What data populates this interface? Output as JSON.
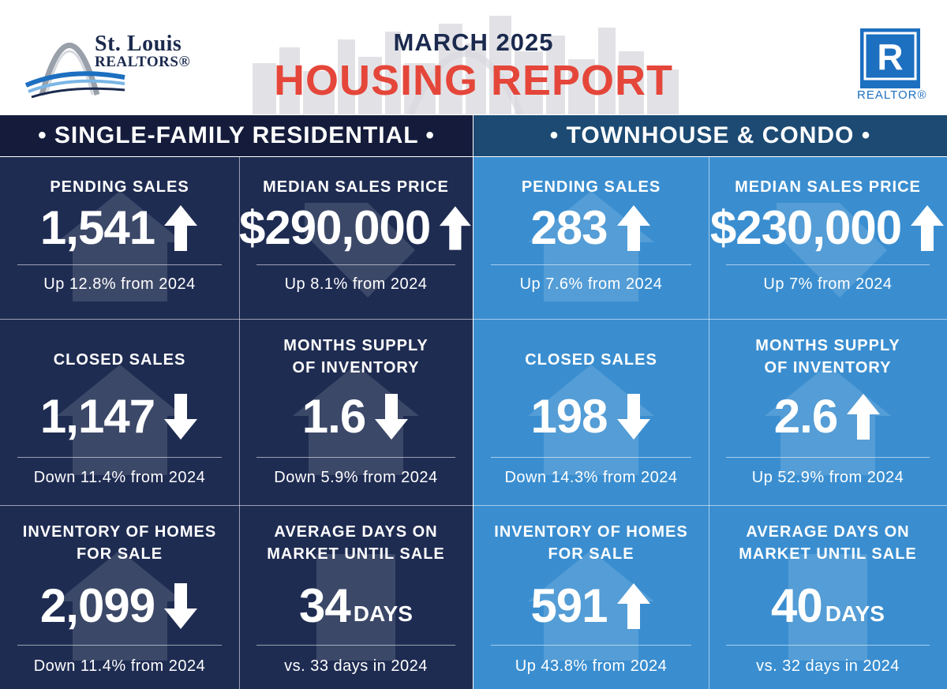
{
  "header": {
    "logo_line1": "St. Louis",
    "logo_line2": "REALTORS®",
    "month": "MARCH 2025",
    "title": "HOUSING REPORT",
    "realtor_logo_text": "REALTOR®",
    "realtor_logo_letter": "R"
  },
  "colors": {
    "navy": "#1f2c52",
    "navy_bar": "#151c3b",
    "blue": "#3a8ed0",
    "blue_bar": "#1c4a73",
    "title_red": "#e5463a"
  },
  "sections": [
    {
      "title": "• SINGLE-FAMILY RESIDENTIAL •",
      "cells": [
        {
          "label": "PENDING SALES",
          "value": "1,541",
          "unit": "",
          "direction": "up",
          "note": "Up 12.8% from 2024"
        },
        {
          "label": "MEDIAN SALES PRICE",
          "value": "$290,000",
          "unit": "",
          "direction": "up",
          "note": "Up 8.1% from 2024"
        },
        {
          "label": "CLOSED SALES",
          "value": "1,147",
          "unit": "",
          "direction": "down",
          "note": "Down 11.4% from 2024"
        },
        {
          "label": "MONTHS SUPPLY\nOF INVENTORY",
          "value": "1.6",
          "unit": "",
          "direction": "down",
          "note": "Down 5.9% from 2024"
        },
        {
          "label": "INVENTORY OF HOMES\nFOR SALE",
          "value": "2,099",
          "unit": "",
          "direction": "down",
          "note": "Down 11.4% from 2024"
        },
        {
          "label": "AVERAGE DAYS ON\nMARKET UNTIL SALE",
          "value": "34",
          "unit": "DAYS",
          "direction": "",
          "note": "vs. 33 days in 2024"
        }
      ]
    },
    {
      "title": "• TOWNHOUSE & CONDO •",
      "cells": [
        {
          "label": "PENDING SALES",
          "value": "283",
          "unit": "",
          "direction": "up",
          "note": "Up 7.6% from 2024"
        },
        {
          "label": "MEDIAN SALES PRICE",
          "value": "$230,000",
          "unit": "",
          "direction": "up",
          "note": "Up 7% from 2024"
        },
        {
          "label": "CLOSED SALES",
          "value": "198",
          "unit": "",
          "direction": "down",
          "note": "Down 14.3% from 2024"
        },
        {
          "label": "MONTHS SUPPLY\nOF INVENTORY",
          "value": "2.6",
          "unit": "",
          "direction": "up",
          "note": "Up 52.9% from 2024"
        },
        {
          "label": "INVENTORY OF HOMES\nFOR SALE",
          "value": "591",
          "unit": "",
          "direction": "up",
          "note": "Up 43.8% from 2024"
        },
        {
          "label": "AVERAGE DAYS ON\nMARKET UNTIL SALE",
          "value": "40",
          "unit": "DAYS",
          "direction": "",
          "note": "vs. 32 days in 2024"
        }
      ]
    }
  ]
}
